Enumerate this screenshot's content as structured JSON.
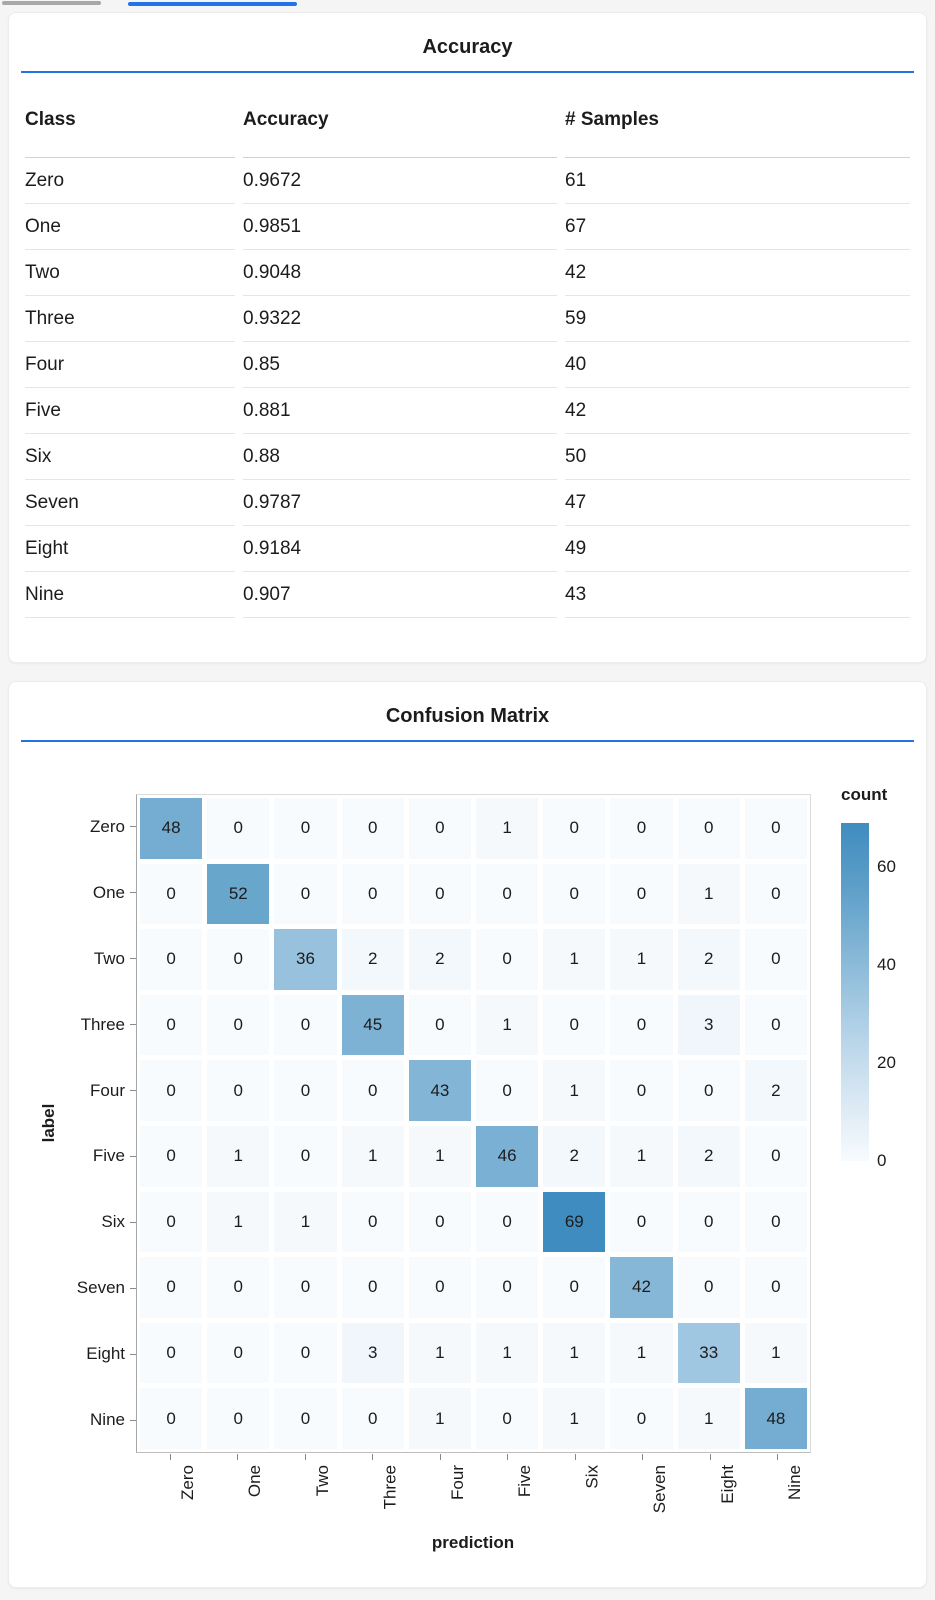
{
  "theme": {
    "accent_blue": "#2273e8",
    "page_background": "#f5f5f6",
    "card_background": "#ffffff",
    "text_color": "#1c1c1c",
    "tick_color": "#8a8a8a",
    "inactive_tab_color": "#a8a8a8"
  },
  "accuracy_card": {
    "title": "Accuracy",
    "table": {
      "columns": [
        "Class",
        "Accuracy",
        "# Samples"
      ],
      "rows": [
        [
          "Zero",
          "0.9672",
          "61"
        ],
        [
          "One",
          "0.9851",
          "67"
        ],
        [
          "Two",
          "0.9048",
          "42"
        ],
        [
          "Three",
          "0.9322",
          "59"
        ],
        [
          "Four",
          "0.85",
          "40"
        ],
        [
          "Five",
          "0.881",
          "42"
        ],
        [
          "Six",
          "0.88",
          "50"
        ],
        [
          "Seven",
          "0.9787",
          "47"
        ],
        [
          "Eight",
          "0.9184",
          "49"
        ],
        [
          "Nine",
          "0.907",
          "43"
        ]
      ]
    }
  },
  "confusion_card": {
    "title": "Confusion Matrix"
  },
  "chart_data": {
    "type": "heatmap",
    "title": "Confusion Matrix",
    "xlabel": "prediction",
    "ylabel": "label",
    "x_categories": [
      "Zero",
      "One",
      "Two",
      "Three",
      "Four",
      "Five",
      "Six",
      "Seven",
      "Eight",
      "Nine"
    ],
    "y_categories": [
      "Zero",
      "One",
      "Two",
      "Three",
      "Four",
      "Five",
      "Six",
      "Seven",
      "Eight",
      "Nine"
    ],
    "matrix": [
      [
        48,
        0,
        0,
        0,
        0,
        1,
        0,
        0,
        0,
        0
      ],
      [
        0,
        52,
        0,
        0,
        0,
        0,
        0,
        0,
        1,
        0
      ],
      [
        0,
        0,
        36,
        2,
        2,
        0,
        1,
        1,
        2,
        0
      ],
      [
        0,
        0,
        0,
        45,
        0,
        1,
        0,
        0,
        3,
        0
      ],
      [
        0,
        0,
        0,
        0,
        43,
        0,
        1,
        0,
        0,
        2
      ],
      [
        0,
        1,
        0,
        1,
        1,
        46,
        2,
        1,
        2,
        0
      ],
      [
        0,
        1,
        1,
        0,
        0,
        0,
        69,
        0,
        0,
        0
      ],
      [
        0,
        0,
        0,
        0,
        0,
        0,
        0,
        42,
        0,
        0
      ],
      [
        0,
        0,
        0,
        3,
        1,
        1,
        1,
        1,
        33,
        1
      ],
      [
        0,
        0,
        0,
        0,
        1,
        0,
        1,
        0,
        1,
        48
      ]
    ],
    "legend": {
      "title": "count",
      "ticks": [
        60,
        40,
        20,
        0
      ],
      "position": "right"
    },
    "color_scale": {
      "domain": [
        0,
        69
      ],
      "stops": [
        "#f7fbfd",
        "#d6e6f2",
        "#b0d0e6",
        "#88b8d8",
        "#5fa0c9",
        "#3f8cc0"
      ]
    },
    "grid": false
  }
}
